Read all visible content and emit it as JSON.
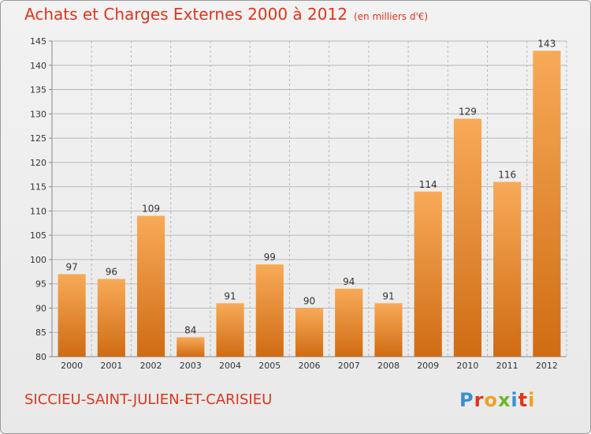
{
  "title": "Achats et Charges Externes 2000 à 2012",
  "unit": "(en milliers d'€)",
  "commune": "SICCIEU-SAINT-JULIEN-ET-CARISIEU",
  "logo": {
    "text": "Proxiti",
    "letters": [
      {
        "char": "P",
        "color": "#3a8ed8"
      },
      {
        "char": "r",
        "color": "#e0341c"
      },
      {
        "char": "o",
        "color": "#f0a020"
      },
      {
        "char": "x",
        "color": "#6ab82e"
      },
      {
        "char": "i",
        "color": "#3a8ed8"
      },
      {
        "char": "t",
        "color": "#e0341c"
      },
      {
        "char": "i",
        "color": "#f0a020"
      }
    ]
  },
  "colors": {
    "title": "#e0341c",
    "bar_top": "#f8aa58",
    "bar_bottom": "#cf6c14",
    "grid": "#b8b8b8"
  },
  "chart_data": {
    "type": "bar",
    "categories": [
      "2000",
      "2001",
      "2002",
      "2003",
      "2004",
      "2005",
      "2006",
      "2007",
      "2008",
      "2009",
      "2010",
      "2011",
      "2012"
    ],
    "values": [
      97,
      96,
      109,
      84,
      91,
      99,
      90,
      94,
      91,
      114,
      129,
      116,
      143
    ],
    "ylim": [
      80,
      145
    ],
    "yticks": [
      80,
      85,
      90,
      95,
      100,
      105,
      110,
      115,
      120,
      125,
      130,
      135,
      140,
      145
    ],
    "grid": true,
    "legend": "none"
  }
}
